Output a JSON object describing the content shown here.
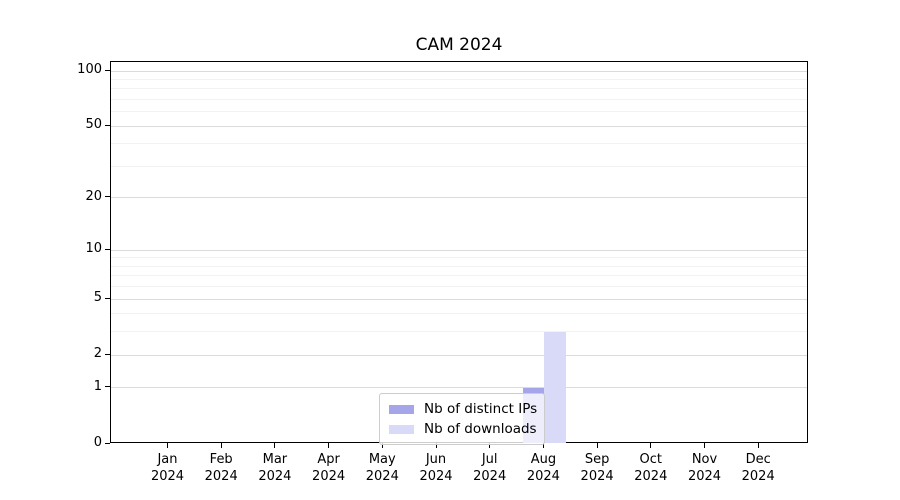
{
  "chart_data": {
    "type": "bar",
    "title": "CAM 2024",
    "categories": [
      "Jan\n2024",
      "Feb\n2024",
      "Mar\n2024",
      "Apr\n2024",
      "May\n2024",
      "Jun\n2024",
      "Jul\n2024",
      "Aug\n2024",
      "Sep\n2024",
      "Oct\n2024",
      "Nov\n2024",
      "Dec\n2024"
    ],
    "series": [
      {
        "name": "Nb of distinct IPs",
        "color": "#a5a5ea",
        "values": [
          0,
          0,
          0,
          0,
          0,
          0,
          0,
          1,
          0,
          0,
          0,
          0
        ]
      },
      {
        "name": "Nb of downloads",
        "color": "#d9d9f8",
        "values": [
          0,
          0,
          0,
          0,
          0,
          0,
          0,
          3,
          0,
          0,
          0,
          0
        ]
      }
    ],
    "xlabel": "",
    "ylabel": "",
    "y_scale": "log10(1+v)",
    "y_ticks": [
      0,
      1,
      2,
      5,
      10,
      20,
      50,
      100
    ],
    "y_minor_gridlines": [
      3,
      4,
      6,
      7,
      8,
      9,
      30,
      40,
      60,
      70,
      80,
      90
    ],
    "ylim": [
      0,
      112
    ],
    "grid": "horizontal",
    "legend_position": "lower center",
    "colors": {
      "major_grid": "#dbdbdb",
      "minor_grid": "#f2f2f2",
      "axis": "#000000",
      "background": "#ffffff",
      "text": "#000000"
    }
  }
}
